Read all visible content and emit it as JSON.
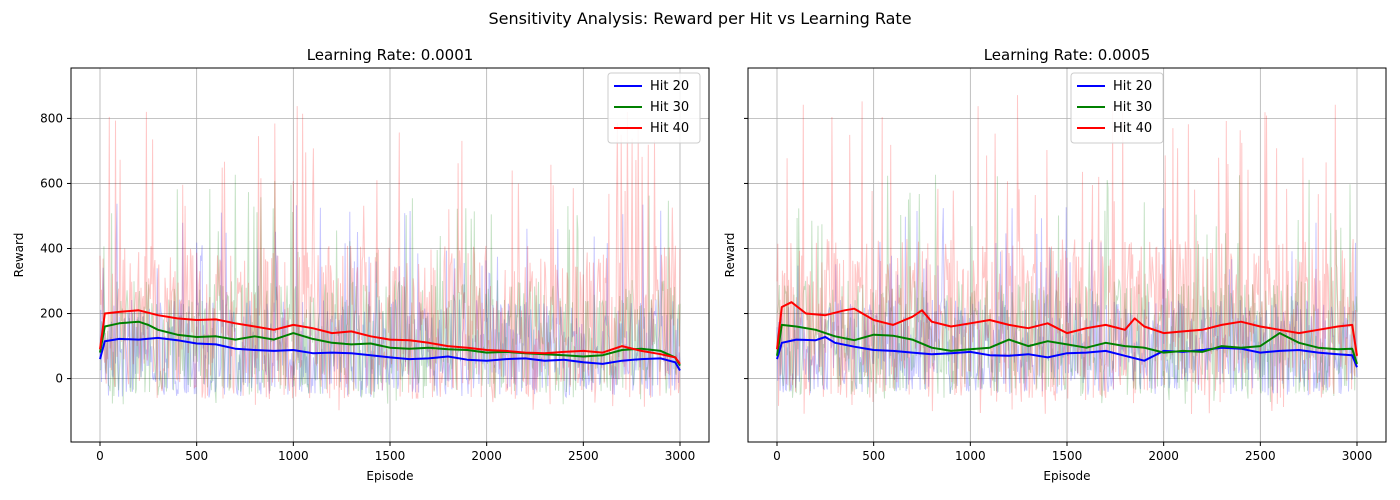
{
  "figure": {
    "suptitle": "Sensitivity Analysis: Reward per Hit vs Learning Rate"
  },
  "chart_data": [
    {
      "type": "line",
      "title": "Learning Rate: 0.0001",
      "xlabel": "Episode",
      "ylabel": "Reward",
      "xlim": [
        -150,
        3150
      ],
      "ylim": [
        -195,
        955
      ],
      "xticks": [
        0,
        500,
        1000,
        1500,
        2000,
        2500,
        3000
      ],
      "yticks": [
        0,
        200,
        400,
        600,
        800
      ],
      "grid": true,
      "legend_position": "top-right",
      "raw_opacity": 0.22,
      "series": [
        {
          "name": "Hit 20",
          "color": "#0000ff",
          "raw_band": {
            "low": -60,
            "high": 480,
            "mean": 80
          },
          "smoothed": [
            {
              "x": 0,
              "y": 60
            },
            {
              "x": 25,
              "y": 115
            },
            {
              "x": 100,
              "y": 122
            },
            {
              "x": 200,
              "y": 120
            },
            {
              "x": 300,
              "y": 125
            },
            {
              "x": 400,
              "y": 118
            },
            {
              "x": 500,
              "y": 108
            },
            {
              "x": 600,
              "y": 105
            },
            {
              "x": 700,
              "y": 92
            },
            {
              "x": 800,
              "y": 88
            },
            {
              "x": 900,
              "y": 85
            },
            {
              "x": 1000,
              "y": 88
            },
            {
              "x": 1100,
              "y": 78
            },
            {
              "x": 1200,
              "y": 80
            },
            {
              "x": 1300,
              "y": 78
            },
            {
              "x": 1400,
              "y": 72
            },
            {
              "x": 1500,
              "y": 65
            },
            {
              "x": 1600,
              "y": 60
            },
            {
              "x": 1700,
              "y": 62
            },
            {
              "x": 1800,
              "y": 68
            },
            {
              "x": 1900,
              "y": 58
            },
            {
              "x": 2000,
              "y": 55
            },
            {
              "x": 2100,
              "y": 60
            },
            {
              "x": 2200,
              "y": 62
            },
            {
              "x": 2300,
              "y": 55
            },
            {
              "x": 2400,
              "y": 58
            },
            {
              "x": 2500,
              "y": 50
            },
            {
              "x": 2600,
              "y": 45
            },
            {
              "x": 2700,
              "y": 55
            },
            {
              "x": 2800,
              "y": 60
            },
            {
              "x": 2900,
              "y": 62
            },
            {
              "x": 2975,
              "y": 50
            },
            {
              "x": 3000,
              "y": 25
            }
          ]
        },
        {
          "name": "Hit 30",
          "color": "#008000",
          "raw_band": {
            "low": -80,
            "high": 560,
            "mean": 110
          },
          "smoothed": [
            {
              "x": 0,
              "y": 80
            },
            {
              "x": 25,
              "y": 160
            },
            {
              "x": 100,
              "y": 170
            },
            {
              "x": 200,
              "y": 175
            },
            {
              "x": 250,
              "y": 165
            },
            {
              "x": 300,
              "y": 150
            },
            {
              "x": 400,
              "y": 135
            },
            {
              "x": 500,
              "y": 128
            },
            {
              "x": 600,
              "y": 130
            },
            {
              "x": 700,
              "y": 120
            },
            {
              "x": 800,
              "y": 130
            },
            {
              "x": 900,
              "y": 120
            },
            {
              "x": 1000,
              "y": 140
            },
            {
              "x": 1100,
              "y": 122
            },
            {
              "x": 1200,
              "y": 110
            },
            {
              "x": 1300,
              "y": 105
            },
            {
              "x": 1400,
              "y": 108
            },
            {
              "x": 1500,
              "y": 95
            },
            {
              "x": 1600,
              "y": 92
            },
            {
              "x": 1700,
              "y": 95
            },
            {
              "x": 1800,
              "y": 90
            },
            {
              "x": 1900,
              "y": 88
            },
            {
              "x": 2000,
              "y": 80
            },
            {
              "x": 2100,
              "y": 82
            },
            {
              "x": 2200,
              "y": 78
            },
            {
              "x": 2300,
              "y": 75
            },
            {
              "x": 2400,
              "y": 72
            },
            {
              "x": 2500,
              "y": 68
            },
            {
              "x": 2600,
              "y": 72
            },
            {
              "x": 2700,
              "y": 88
            },
            {
              "x": 2800,
              "y": 92
            },
            {
              "x": 2900,
              "y": 85
            },
            {
              "x": 2975,
              "y": 65
            },
            {
              "x": 3000,
              "y": 40
            }
          ]
        },
        {
          "name": "Hit 40",
          "color": "#ff0000",
          "raw_band": {
            "low": -100,
            "high": 760,
            "mean": 150
          },
          "smoothed": [
            {
              "x": 0,
              "y": 90
            },
            {
              "x": 25,
              "y": 200
            },
            {
              "x": 100,
              "y": 205
            },
            {
              "x": 200,
              "y": 210
            },
            {
              "x": 300,
              "y": 195
            },
            {
              "x": 400,
              "y": 185
            },
            {
              "x": 500,
              "y": 180
            },
            {
              "x": 600,
              "y": 182
            },
            {
              "x": 700,
              "y": 170
            },
            {
              "x": 800,
              "y": 160
            },
            {
              "x": 900,
              "y": 150
            },
            {
              "x": 1000,
              "y": 165
            },
            {
              "x": 1100,
              "y": 155
            },
            {
              "x": 1200,
              "y": 140
            },
            {
              "x": 1300,
              "y": 145
            },
            {
              "x": 1400,
              "y": 130
            },
            {
              "x": 1500,
              "y": 120
            },
            {
              "x": 1600,
              "y": 118
            },
            {
              "x": 1700,
              "y": 110
            },
            {
              "x": 1800,
              "y": 100
            },
            {
              "x": 1900,
              "y": 95
            },
            {
              "x": 2000,
              "y": 88
            },
            {
              "x": 2100,
              "y": 85
            },
            {
              "x": 2200,
              "y": 80
            },
            {
              "x": 2300,
              "y": 78
            },
            {
              "x": 2400,
              "y": 82
            },
            {
              "x": 2500,
              "y": 85
            },
            {
              "x": 2600,
              "y": 80
            },
            {
              "x": 2700,
              "y": 100
            },
            {
              "x": 2800,
              "y": 85
            },
            {
              "x": 2900,
              "y": 75
            },
            {
              "x": 2975,
              "y": 65
            },
            {
              "x": 3000,
              "y": 45
            }
          ]
        }
      ]
    },
    {
      "type": "line",
      "title": "Learning Rate: 0.0005",
      "xlabel": "Episode",
      "ylabel": "Reward",
      "xlim": [
        -150,
        3150
      ],
      "ylim": [
        -195,
        955
      ],
      "xticks": [
        0,
        500,
        1000,
        1500,
        2000,
        2500,
        3000
      ],
      "yticks": [
        0,
        200,
        400,
        600,
        800
      ],
      "show_ytick_labels": false,
      "grid": true,
      "legend_position": "upper-center",
      "raw_opacity": 0.22,
      "series": [
        {
          "name": "Hit 20",
          "color": "#0000ff",
          "raw_band": {
            "low": -60,
            "high": 470,
            "mean": 82
          },
          "smoothed": [
            {
              "x": 0,
              "y": 60
            },
            {
              "x": 25,
              "y": 110
            },
            {
              "x": 100,
              "y": 120
            },
            {
              "x": 200,
              "y": 118
            },
            {
              "x": 250,
              "y": 128
            },
            {
              "x": 300,
              "y": 110
            },
            {
              "x": 400,
              "y": 98
            },
            {
              "x": 500,
              "y": 88
            },
            {
              "x": 600,
              "y": 85
            },
            {
              "x": 700,
              "y": 80
            },
            {
              "x": 800,
              "y": 75
            },
            {
              "x": 900,
              "y": 78
            },
            {
              "x": 1000,
              "y": 82
            },
            {
              "x": 1100,
              "y": 72
            },
            {
              "x": 1200,
              "y": 70
            },
            {
              "x": 1300,
              "y": 75
            },
            {
              "x": 1400,
              "y": 65
            },
            {
              "x": 1500,
              "y": 78
            },
            {
              "x": 1600,
              "y": 80
            },
            {
              "x": 1700,
              "y": 85
            },
            {
              "x": 1800,
              "y": 70
            },
            {
              "x": 1900,
              "y": 55
            },
            {
              "x": 2000,
              "y": 85
            },
            {
              "x": 2100,
              "y": 82
            },
            {
              "x": 2200,
              "y": 88
            },
            {
              "x": 2300,
              "y": 95
            },
            {
              "x": 2400,
              "y": 92
            },
            {
              "x": 2500,
              "y": 80
            },
            {
              "x": 2600,
              "y": 85
            },
            {
              "x": 2700,
              "y": 88
            },
            {
              "x": 2800,
              "y": 80
            },
            {
              "x": 2900,
              "y": 75
            },
            {
              "x": 2975,
              "y": 72
            },
            {
              "x": 3000,
              "y": 35
            }
          ]
        },
        {
          "name": "Hit 30",
          "color": "#008000",
          "raw_band": {
            "low": -80,
            "high": 560,
            "mean": 110
          },
          "smoothed": [
            {
              "x": 0,
              "y": 70
            },
            {
              "x": 25,
              "y": 165
            },
            {
              "x": 100,
              "y": 160
            },
            {
              "x": 200,
              "y": 150
            },
            {
              "x": 300,
              "y": 130
            },
            {
              "x": 400,
              "y": 118
            },
            {
              "x": 500,
              "y": 135
            },
            {
              "x": 600,
              "y": 132
            },
            {
              "x": 700,
              "y": 120
            },
            {
              "x": 800,
              "y": 95
            },
            {
              "x": 900,
              "y": 85
            },
            {
              "x": 1000,
              "y": 90
            },
            {
              "x": 1100,
              "y": 95
            },
            {
              "x": 1200,
              "y": 120
            },
            {
              "x": 1300,
              "y": 100
            },
            {
              "x": 1400,
              "y": 115
            },
            {
              "x": 1500,
              "y": 105
            },
            {
              "x": 1600,
              "y": 95
            },
            {
              "x": 1700,
              "y": 110
            },
            {
              "x": 1800,
              "y": 100
            },
            {
              "x": 1900,
              "y": 95
            },
            {
              "x": 2000,
              "y": 80
            },
            {
              "x": 2100,
              "y": 85
            },
            {
              "x": 2200,
              "y": 82
            },
            {
              "x": 2300,
              "y": 100
            },
            {
              "x": 2400,
              "y": 95
            },
            {
              "x": 2500,
              "y": 100
            },
            {
              "x": 2600,
              "y": 140
            },
            {
              "x": 2700,
              "y": 110
            },
            {
              "x": 2800,
              "y": 95
            },
            {
              "x": 2900,
              "y": 90
            },
            {
              "x": 2975,
              "y": 92
            },
            {
              "x": 3000,
              "y": 45
            }
          ]
        },
        {
          "name": "Hit 40",
          "color": "#ff0000",
          "raw_band": {
            "low": -110,
            "high": 780,
            "mean": 160
          },
          "smoothed": [
            {
              "x": 0,
              "y": 90
            },
            {
              "x": 25,
              "y": 220
            },
            {
              "x": 75,
              "y": 235
            },
            {
              "x": 150,
              "y": 200
            },
            {
              "x": 250,
              "y": 195
            },
            {
              "x": 350,
              "y": 210
            },
            {
              "x": 400,
              "y": 215
            },
            {
              "x": 500,
              "y": 180
            },
            {
              "x": 600,
              "y": 165
            },
            {
              "x": 700,
              "y": 190
            },
            {
              "x": 750,
              "y": 210
            },
            {
              "x": 800,
              "y": 175
            },
            {
              "x": 900,
              "y": 160
            },
            {
              "x": 1000,
              "y": 170
            },
            {
              "x": 1100,
              "y": 180
            },
            {
              "x": 1200,
              "y": 165
            },
            {
              "x": 1300,
              "y": 155
            },
            {
              "x": 1400,
              "y": 170
            },
            {
              "x": 1500,
              "y": 140
            },
            {
              "x": 1600,
              "y": 155
            },
            {
              "x": 1700,
              "y": 165
            },
            {
              "x": 1800,
              "y": 150
            },
            {
              "x": 1850,
              "y": 185
            },
            {
              "x": 1900,
              "y": 160
            },
            {
              "x": 2000,
              "y": 140
            },
            {
              "x": 2100,
              "y": 145
            },
            {
              "x": 2200,
              "y": 150
            },
            {
              "x": 2300,
              "y": 165
            },
            {
              "x": 2400,
              "y": 175
            },
            {
              "x": 2500,
              "y": 160
            },
            {
              "x": 2600,
              "y": 150
            },
            {
              "x": 2700,
              "y": 140
            },
            {
              "x": 2800,
              "y": 150
            },
            {
              "x": 2900,
              "y": 160
            },
            {
              "x": 2975,
              "y": 165
            },
            {
              "x": 3000,
              "y": 70
            }
          ]
        }
      ]
    }
  ]
}
